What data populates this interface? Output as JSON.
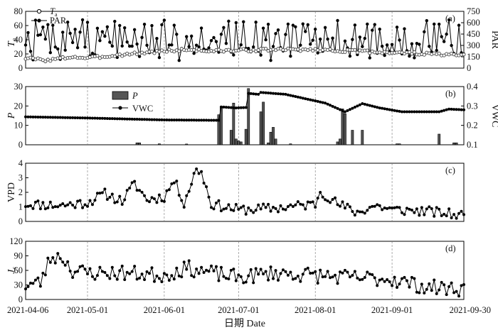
{
  "xaxis": {
    "label": "日期 Date",
    "start": "2021-04-06",
    "end": "2021-09-30",
    "ticks": [
      "2021-04-06",
      "2021-05-01",
      "2021-06-01",
      "2021-07-01",
      "2021-08-01",
      "2021-09-01",
      "2021-09-30"
    ]
  },
  "chart_data": [
    {
      "type": "line",
      "panel_label": "(a)",
      "ylabel_left": "T",
      "ylabel_left_sub": "a",
      "ylabel_right": "PAR",
      "ylim_left": [
        0,
        80
      ],
      "ylim_right": [
        0,
        750
      ],
      "yticks_left": [
        0,
        20,
        40,
        60,
        80
      ],
      "yticks_right": [
        0,
        150,
        300,
        450,
        600,
        750
      ],
      "legend": {
        "position": "top-left",
        "ta_label": "T",
        "ta_sub": "a",
        "par_label": "PAR"
      },
      "series": [
        {
          "name": "T",
          "axis": "left",
          "marker": "open-circle",
          "anchors": [
            [
              "2021-04-06",
              14
            ],
            [
              "2021-04-15",
              11
            ],
            [
              "2021-04-25",
              16
            ],
            [
              "2021-05-01",
              14
            ],
            [
              "2021-05-15",
              19
            ],
            [
              "2021-06-01",
              24
            ],
            [
              "2021-06-10",
              26
            ],
            [
              "2021-06-20",
              24
            ],
            [
              "2021-07-01",
              25
            ],
            [
              "2021-07-15",
              26
            ],
            [
              "2021-08-01",
              26
            ],
            [
              "2021-08-15",
              24
            ],
            [
              "2021-09-01",
              22
            ],
            [
              "2021-09-15",
              20
            ],
            [
              "2021-09-30",
              18
            ]
          ]
        },
        {
          "name": "PAR",
          "axis": "right",
          "marker": "filled-circle",
          "range": [
            100,
            640
          ],
          "baseline": 420,
          "seed": 7
        }
      ]
    },
    {
      "type": "bar+line",
      "panel_label": "(b)",
      "ylabel_left": "P",
      "ylabel_right": "VWC",
      "ylim_left": [
        0,
        30
      ],
      "ylim_right": [
        0.1,
        0.4
      ],
      "yticks_left": [
        0,
        10,
        20,
        30
      ],
      "yticks_right": [
        0.1,
        0.2,
        0.3,
        0.4
      ],
      "legend": {
        "position": "top-center",
        "p_label": "P",
        "vwc_label": "VWC"
      },
      "precip": [
        [
          "2021-05-21",
          1
        ],
        [
          "2021-05-22",
          1
        ],
        [
          "2021-05-30",
          0.5
        ],
        [
          "2021-06-10",
          0.4
        ],
        [
          "2021-06-23",
          15.5
        ],
        [
          "2021-06-24",
          19
        ],
        [
          "2021-06-28",
          7.5
        ],
        [
          "2021-06-29",
          21.5
        ],
        [
          "2021-06-30",
          3
        ],
        [
          "2021-07-01",
          2
        ],
        [
          "2021-07-02",
          1.5
        ],
        [
          "2021-07-04",
          8
        ],
        [
          "2021-07-05",
          29
        ],
        [
          "2021-07-10",
          17
        ],
        [
          "2021-07-11",
          22
        ],
        [
          "2021-07-13",
          1
        ],
        [
          "2021-07-14",
          6.5
        ],
        [
          "2021-07-15",
          9
        ],
        [
          "2021-07-16",
          3
        ],
        [
          "2021-07-22",
          0.5
        ],
        [
          "2021-08-10",
          1.5
        ],
        [
          "2021-08-11",
          3
        ],
        [
          "2021-08-12",
          18.5
        ],
        [
          "2021-08-13",
          16
        ],
        [
          "2021-08-16",
          7.5
        ],
        [
          "2021-08-20",
          7.5
        ],
        [
          "2021-09-03",
          0.5
        ],
        [
          "2021-09-04",
          0.5
        ],
        [
          "2021-09-20",
          5.5
        ],
        [
          "2021-09-26",
          1
        ],
        [
          "2021-09-27",
          1
        ]
      ],
      "vwc_anchors": [
        [
          "2021-04-06",
          0.244
        ],
        [
          "2021-05-01",
          0.238
        ],
        [
          "2021-06-01",
          0.228
        ],
        [
          "2021-06-23",
          0.226
        ],
        [
          "2021-06-24",
          0.295
        ],
        [
          "2021-06-30",
          0.29
        ],
        [
          "2021-07-04",
          0.292
        ],
        [
          "2021-07-05",
          0.365
        ],
        [
          "2021-07-09",
          0.36
        ],
        [
          "2021-07-10",
          0.37
        ],
        [
          "2021-07-20",
          0.36
        ],
        [
          "2021-08-05",
          0.315
        ],
        [
          "2021-08-13",
          0.27
        ],
        [
          "2021-08-18",
          0.3
        ],
        [
          "2021-08-20",
          0.312
        ],
        [
          "2021-08-27",
          0.29
        ],
        [
          "2021-09-05",
          0.27
        ],
        [
          "2021-09-20",
          0.27
        ],
        [
          "2021-09-24",
          0.284
        ],
        [
          "2021-09-30",
          0.28
        ]
      ]
    },
    {
      "type": "line",
      "panel_label": "(c)",
      "ylabel": "VPD",
      "ylim": [
        0,
        4
      ],
      "yticks": [
        0,
        1,
        2,
        3,
        4
      ],
      "anchors": [
        [
          "2021-04-06",
          1.2
        ],
        [
          "2021-04-20",
          1.1
        ],
        [
          "2021-05-01",
          1.3
        ],
        [
          "2021-05-08",
          1.9
        ],
        [
          "2021-05-15",
          1.4
        ],
        [
          "2021-05-20",
          2.6
        ],
        [
          "2021-05-25",
          1.5
        ],
        [
          "2021-06-01",
          1.7
        ],
        [
          "2021-06-05",
          2.8
        ],
        [
          "2021-06-09",
          1.3
        ],
        [
          "2021-06-14",
          3.6
        ],
        [
          "2021-06-16",
          3.4
        ],
        [
          "2021-06-20",
          1.2
        ],
        [
          "2021-07-01",
          0.8
        ],
        [
          "2021-07-15",
          0.9
        ],
        [
          "2021-08-01",
          1.2
        ],
        [
          "2021-08-03",
          2.1
        ],
        [
          "2021-08-10",
          1.2
        ],
        [
          "2021-08-18",
          0.6
        ],
        [
          "2021-08-25",
          1.1
        ],
        [
          "2021-09-01",
          0.8
        ],
        [
          "2021-09-15",
          0.7
        ],
        [
          "2021-09-30",
          0.4
        ]
      ],
      "noise": 0.35,
      "seed": 11
    },
    {
      "type": "line",
      "panel_label": "(d)",
      "ylabel": "J",
      "ylabel_sub": "s",
      "ylim": [
        0,
        120
      ],
      "yticks": [
        0,
        30,
        60,
        90,
        120
      ],
      "anchors": [
        [
          "2021-04-06",
          30
        ],
        [
          "2021-04-12",
          35
        ],
        [
          "2021-04-16",
          85
        ],
        [
          "2021-04-20",
          92
        ],
        [
          "2021-04-25",
          60
        ],
        [
          "2021-05-01",
          55
        ],
        [
          "2021-05-15",
          55
        ],
        [
          "2021-06-01",
          50
        ],
        [
          "2021-06-10",
          65
        ],
        [
          "2021-06-20",
          55
        ],
        [
          "2021-07-01",
          45
        ],
        [
          "2021-07-15",
          55
        ],
        [
          "2021-08-01",
          50
        ],
        [
          "2021-08-15",
          45
        ],
        [
          "2021-09-01",
          42
        ],
        [
          "2021-09-15",
          25
        ],
        [
          "2021-09-30",
          22
        ]
      ],
      "noise": 16,
      "seed": 23
    }
  ]
}
